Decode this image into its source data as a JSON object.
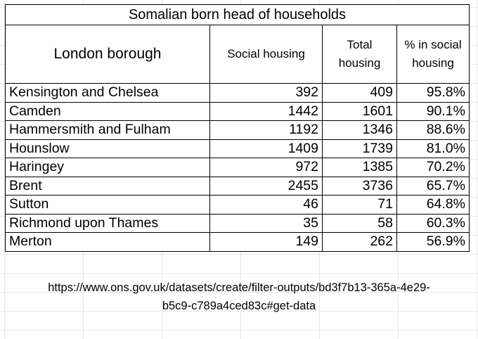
{
  "table": {
    "title": "Somalian born head of households",
    "headers": {
      "borough": "London borough",
      "social": "Social housing",
      "total_line1": "Total",
      "total_line2": "housing",
      "pct_line1": "% in social",
      "pct_line2": "housing"
    },
    "rows": [
      {
        "borough": "Kensington and Chelsea",
        "social": "392",
        "total": "409",
        "pct": "95.8%"
      },
      {
        "borough": "Camden",
        "social": "1442",
        "total": "1601",
        "pct": "90.1%"
      },
      {
        "borough": "Hammersmith and Fulham",
        "social": "1192",
        "total": "1346",
        "pct": "88.6%"
      },
      {
        "borough": "Hounslow",
        "social": "1409",
        "total": "1739",
        "pct": "81.0%"
      },
      {
        "borough": "Haringey",
        "social": "972",
        "total": "1385",
        "pct": "70.2%"
      },
      {
        "borough": "Brent",
        "social": "2455",
        "total": "3736",
        "pct": "65.7%"
      },
      {
        "borough": "Sutton",
        "social": "46",
        "total": "71",
        "pct": "64.8%"
      },
      {
        "borough": "Richmond upon Thames",
        "social": "35",
        "total": "58",
        "pct": "60.3%"
      },
      {
        "borough": "Merton",
        "social": "149",
        "total": "262",
        "pct": "56.9%"
      }
    ]
  },
  "source": {
    "line1": "https://www.ons.gov.uk/datasets/create/filter-outputs/bd3f7b13-365a-4e29-",
    "line2": "b5c9-c789a4ced83c#get-data"
  }
}
